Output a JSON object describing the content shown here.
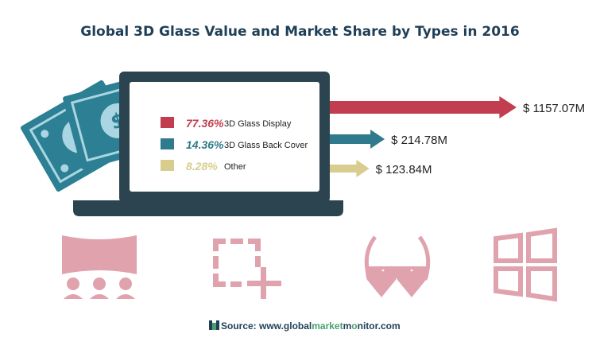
{
  "title": "Global 3D Glass Value and Market Share by Types in 2016",
  "source": {
    "prefix": "Source: www.global",
    "highlight1": "market",
    "middle": "m",
    "highlight2": "o",
    "suffix": "nitor.com"
  },
  "icons": [
    "cinema-screen-icon",
    "crop-add-icon",
    "heart-glasses-icon",
    "windows-logo-icon"
  ],
  "colors": {
    "dark": "#2b4450",
    "display": "#c23d4f",
    "back_cover": "#2f7a8c",
    "other": "#d8cd8e",
    "icon_pink": "#e0a3ae",
    "money": "#2d7f93"
  },
  "chart_data": {
    "type": "bar",
    "title": "Global 3D Glass Value and Market Share by Types in 2016",
    "series": [
      {
        "name": "3D Glass Display",
        "share": "77.36%",
        "value": 1157.07,
        "value_label": "$ 1157.07M",
        "color": "#c23d4f"
      },
      {
        "name": "3D Glass Back Cover",
        "share": "14.36%",
        "value": 214.78,
        "value_label": "$ 214.78M",
        "color": "#2f7a8c"
      },
      {
        "name": "Other",
        "share": "8.28%",
        "value": 123.84,
        "value_label": "$ 123.84M",
        "color": "#d8cd8e"
      }
    ]
  }
}
